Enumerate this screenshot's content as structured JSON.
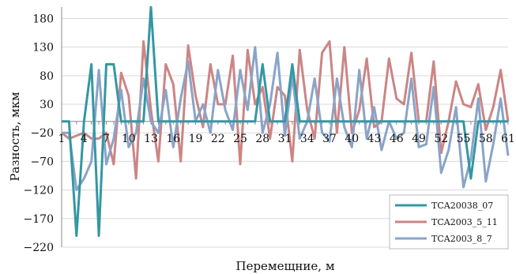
{
  "chart_data": {
    "type": "line",
    "xlabel": "Перемещние, м",
    "ylabel": "Разность, мкм",
    "ylim": [
      -220,
      200
    ],
    "yticks": [
      -220,
      -170,
      -120,
      -70,
      -20,
      30,
      80,
      130,
      180
    ],
    "x": [
      1,
      2,
      3,
      4,
      5,
      6,
      7,
      8,
      9,
      10,
      11,
      12,
      13,
      14,
      15,
      16,
      17,
      18,
      19,
      20,
      21,
      22,
      23,
      24,
      25,
      26,
      27,
      28,
      29,
      30,
      31,
      32,
      33,
      34,
      35,
      36,
      37,
      38,
      39,
      40,
      41,
      42,
      43,
      44,
      45,
      46,
      47,
      48,
      49,
      50,
      51,
      52,
      53,
      54,
      55,
      56,
      57,
      58,
      59,
      60,
      61
    ],
    "xticks": [
      1,
      4,
      7,
      10,
      13,
      16,
      19,
      22,
      25,
      28,
      31,
      34,
      37,
      40,
      43,
      46,
      49,
      52,
      55,
      58,
      61
    ],
    "grid": {
      "horizontal": true,
      "vertical": false
    },
    "legend_position": "bottom-right",
    "series": [
      {
        "name": "TCA20038_07",
        "color": "#3497a3",
        "values": [
          0,
          0,
          -200,
          0,
          100,
          -200,
          100,
          100,
          0,
          0,
          0,
          0,
          200,
          0,
          0,
          0,
          0,
          0,
          0,
          0,
          0,
          0,
          0,
          0,
          0,
          0,
          0,
          100,
          0,
          0,
          0,
          100,
          0,
          0,
          0,
          0,
          0,
          0,
          0,
          0,
          0,
          0,
          0,
          0,
          0,
          0,
          0,
          0,
          0,
          0,
          0,
          0,
          0,
          0,
          0,
          -100,
          0,
          0,
          0,
          0,
          0
        ]
      },
      {
        "name": "TCA2003_5_11",
        "color": "#cc8585",
        "values": [
          -20,
          -30,
          -25,
          -20,
          -30,
          -30,
          -20,
          -75,
          85,
          45,
          -100,
          140,
          20,
          -70,
          100,
          65,
          -70,
          133,
          45,
          -10,
          100,
          30,
          30,
          115,
          -75,
          125,
          30,
          60,
          -30,
          60,
          45,
          -70,
          125,
          20,
          -30,
          120,
          140,
          -20,
          130,
          -20,
          20,
          110,
          -10,
          0,
          110,
          40,
          30,
          120,
          0,
          0,
          105,
          -55,
          0,
          70,
          30,
          25,
          65,
          -15,
          25,
          90,
          0
        ]
      },
      {
        "name": "TCA2003_8_7",
        "color": "#8aa4c8",
        "values": [
          -20,
          -20,
          -120,
          -100,
          -70,
          90,
          -75,
          -30,
          55,
          -45,
          -20,
          75,
          0,
          -20,
          55,
          -45,
          40,
          105,
          0,
          30,
          -20,
          90,
          20,
          -15,
          90,
          20,
          130,
          -20,
          30,
          120,
          -25,
          80,
          -30,
          0,
          75,
          -20,
          -35,
          75,
          -10,
          -45,
          90,
          -30,
          25,
          -50,
          0,
          -30,
          -20,
          75,
          -45,
          -40,
          60,
          -90,
          -50,
          25,
          -115,
          -65,
          40,
          -105,
          -40,
          40,
          -60
        ]
      }
    ]
  }
}
